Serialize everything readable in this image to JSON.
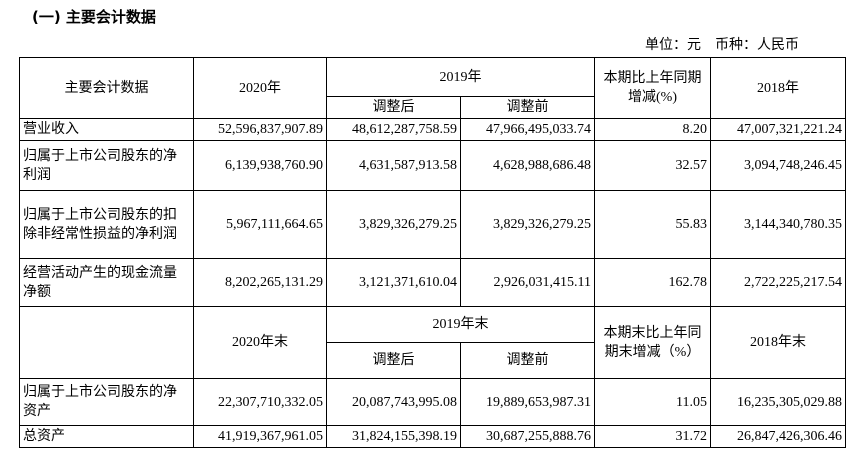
{
  "title": "(一) 主要会计数据",
  "unit": "单位：元　币种：人民币",
  "header1": {
    "col0": "主要会计数据",
    "col1": "2020年",
    "col2": "2019年",
    "sub_after": "调整后",
    "sub_before": "调整前",
    "col4": "本期比上年同期增减(%)",
    "col5": "2018年"
  },
  "rows1": [
    {
      "label": "营业收入",
      "v2020": "52,596,837,907.89",
      "v2019a": "48,612,287,758.59",
      "v2019b": "47,966,495,033.74",
      "chg": "8.20",
      "v2018": "47,007,321,221.24"
    },
    {
      "label": "归属于上市公司股东的净利润",
      "v2020": "6,139,938,760.90",
      "v2019a": "4,631,587,913.58",
      "v2019b": "4,628,988,686.48",
      "chg": "32.57",
      "v2018": "3,094,748,246.45"
    },
    {
      "label": "归属于上市公司股东的扣除非经常性损益的净利润",
      "v2020": "5,967,111,664.65",
      "v2019a": "3,829,326,279.25",
      "v2019b": "3,829,326,279.25",
      "chg": "55.83",
      "v2018": "3,144,340,780.35"
    },
    {
      "label": "经营活动产生的现金流量净额",
      "v2020": "8,202,265,131.29",
      "v2019a": "3,121,371,610.04",
      "v2019b": "2,926,031,415.11",
      "chg": "162.78",
      "v2018": "2,722,225,217.54"
    }
  ],
  "header2": {
    "col1": "2020年末",
    "col2": "2019年末",
    "sub_after": "调整后",
    "sub_before": "调整前",
    "col4": "本期末比上年同期末增减（%）",
    "col5": "2018年末"
  },
  "rows2": [
    {
      "label": "归属于上市公司股东的净资产",
      "v2020": "22,307,710,332.05",
      "v2019a": "20,087,743,995.08",
      "v2019b": "19,889,653,987.31",
      "chg": "11.05",
      "v2018": "16,235,305,029.88"
    },
    {
      "label": "总资产",
      "v2020": "41,919,367,961.05",
      "v2019a": "31,824,155,398.19",
      "v2019b": "30,687,255,888.76",
      "chg": "31.72",
      "v2018": "26,847,426,306.46"
    }
  ]
}
